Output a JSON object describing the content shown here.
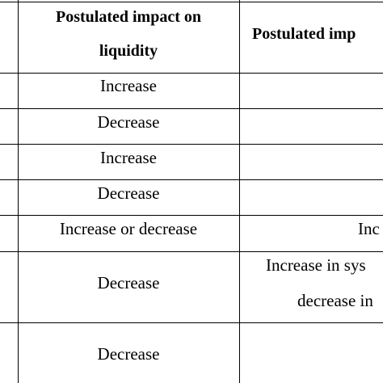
{
  "table": {
    "headers": {
      "col_liquidity_line1": "Postulated impact on",
      "col_liquidity_line2": "liquidity",
      "col_second": "Postulated imp"
    },
    "rows": [
      {
        "liquidity": "Increase",
        "second_1": "",
        "second_2": ""
      },
      {
        "liquidity": "Decrease",
        "second_1": "",
        "second_2": ""
      },
      {
        "liquidity": "Increase",
        "second_1": "",
        "second_2": ""
      },
      {
        "liquidity": "Decrease",
        "second_1": "",
        "second_2": ""
      },
      {
        "liquidity": "Increase or decrease",
        "second_1": "Inc",
        "second_2": ""
      },
      {
        "liquidity": "Decrease",
        "second_1": "Increase in sys",
        "second_2": "decrease in"
      },
      {
        "liquidity": "Decrease",
        "second_1": "",
        "second_2": ""
      }
    ]
  }
}
